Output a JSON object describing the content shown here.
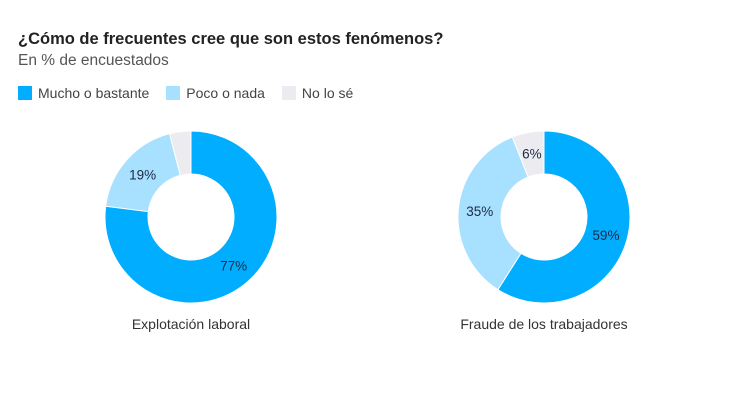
{
  "chart_data": {
    "type": "pie",
    "title": "¿Cómo de frecuentes cree que son estos fenómenos?",
    "subtitle": "En % de encuestados",
    "legend": [
      {
        "label": "Mucho o bastante",
        "color": "#00adfe"
      },
      {
        "label": "Poco o nada",
        "color": "#a8e0ff"
      },
      {
        "label": "No lo sé",
        "color": "#ececf0"
      }
    ],
    "legend_placement": "top-left",
    "charts": [
      {
        "caption": "Explotación laboral",
        "values": [
          77,
          19,
          4
        ],
        "labels": [
          "77%",
          "19%",
          ""
        ]
      },
      {
        "caption": "Fraude de los trabajadores",
        "values": [
          59,
          35,
          6
        ],
        "labels": [
          "59%",
          "35%",
          "6%"
        ]
      }
    ]
  }
}
